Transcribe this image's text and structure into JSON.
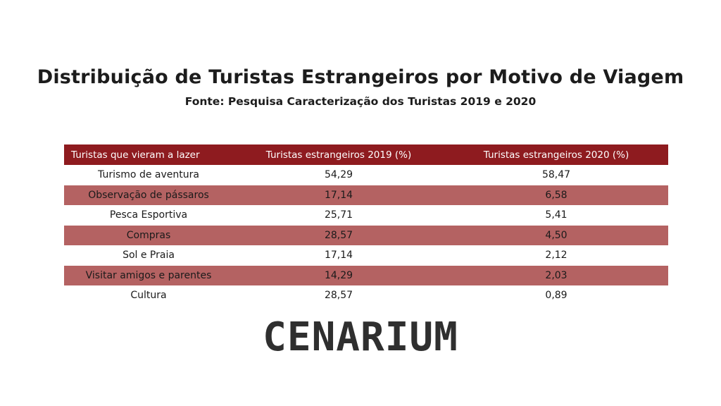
{
  "title": "Distribuição de Turistas Estrangeiros por Motivo de Viagem",
  "subtitle": "Fonte: Pesquisa Caracterização dos Turistas 2019 e 2020",
  "logo_text": "CENARIUM",
  "colors": {
    "header": "#8e1b1f",
    "row_shade": "#b46262"
  },
  "chart_data": {
    "type": "table",
    "columns": [
      "Turistas que vieram a lazer",
      "Turistas estrangeiros 2019 (%)",
      "Turistas estrangeiros 2020 (%)"
    ],
    "rows": [
      [
        "Turismo de aventura",
        "54,29",
        "58,47"
      ],
      [
        "Observação de pássaros",
        "17,14",
        "6,58"
      ],
      [
        "Pesca Esportiva",
        "25,71",
        "5,41"
      ],
      [
        "Compras",
        "28,57",
        "4,50"
      ],
      [
        "Sol e Praia",
        "17,14",
        "2,12"
      ],
      [
        "Visitar amigos e parentes",
        "14,29",
        "2,03"
      ],
      [
        "Cultura",
        "28,57",
        "0,89"
      ]
    ]
  }
}
